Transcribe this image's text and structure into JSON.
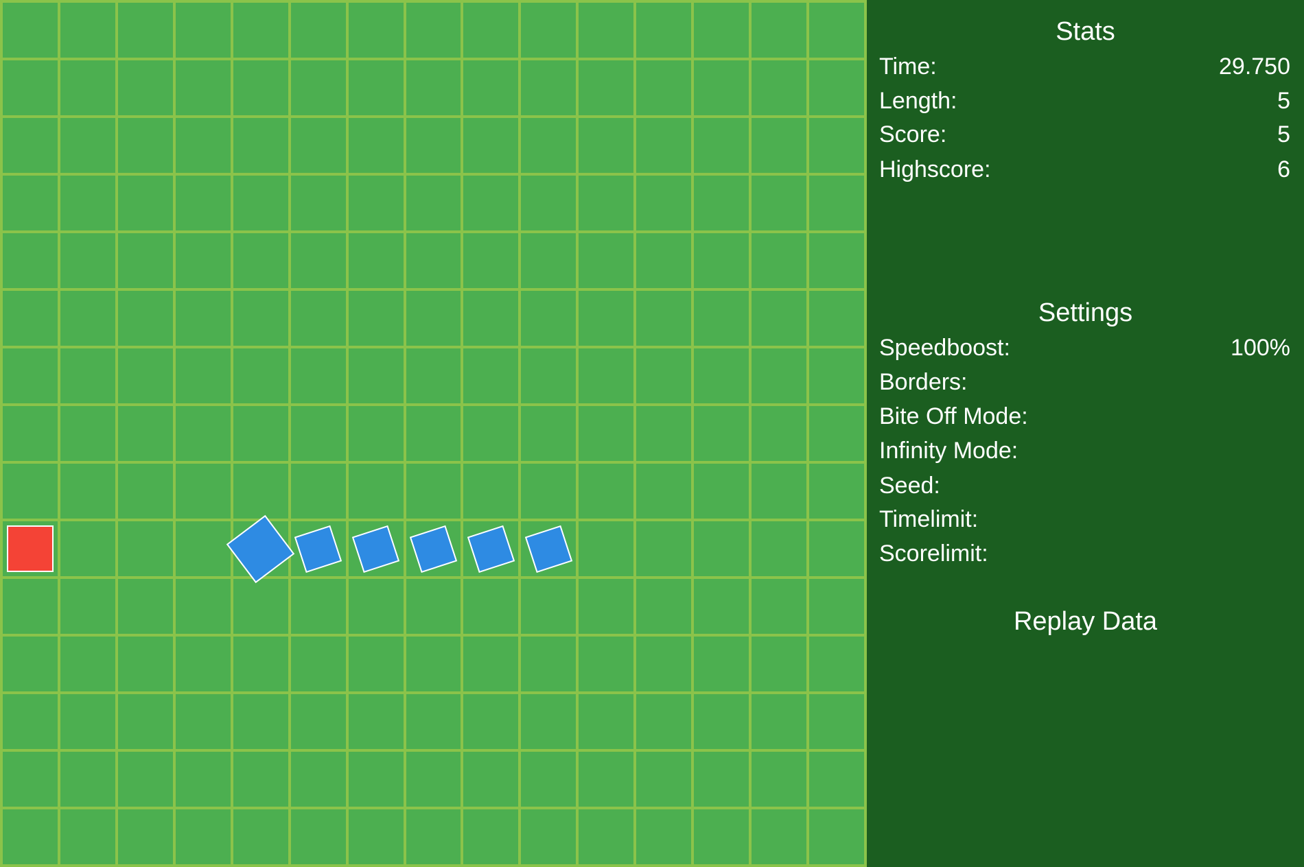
{
  "colors": {
    "board": "#4caf50",
    "grid": "#8bc34a",
    "panel": "#1b5e20",
    "snake": "#2e8be3",
    "food": "#f44336"
  },
  "board": {
    "columns": 15,
    "rows": 15,
    "food": {
      "col": 0,
      "row": 9
    },
    "snake": {
      "head": {
        "col": 4,
        "row": 9,
        "rotation_deg": -37
      },
      "body": [
        {
          "col": 5,
          "row": 9
        },
        {
          "col": 6,
          "row": 9
        },
        {
          "col": 7,
          "row": 9
        },
        {
          "col": 8,
          "row": 9
        },
        {
          "col": 9,
          "row": 9
        }
      ],
      "body_rotation_deg": -18
    }
  },
  "stats": {
    "title": "Stats",
    "rows": [
      {
        "label": "Time:",
        "value": "29.750"
      },
      {
        "label": "Length:",
        "value": "5"
      },
      {
        "label": "Score:",
        "value": "5"
      },
      {
        "label": "Highscore:",
        "value": "6"
      }
    ]
  },
  "settings": {
    "title": "Settings",
    "rows": [
      {
        "label": "Speedboost:",
        "value": "100%"
      },
      {
        "label": "Borders:",
        "value": ""
      },
      {
        "label": "Bite Off Mode:",
        "value": ""
      },
      {
        "label": "Infinity Mode:",
        "value": ""
      },
      {
        "label": "Seed:",
        "value": ""
      },
      {
        "label": "Timelimit:",
        "value": ""
      },
      {
        "label": "Scorelimit:",
        "value": ""
      }
    ]
  },
  "replay": {
    "title": "Replay Data"
  }
}
